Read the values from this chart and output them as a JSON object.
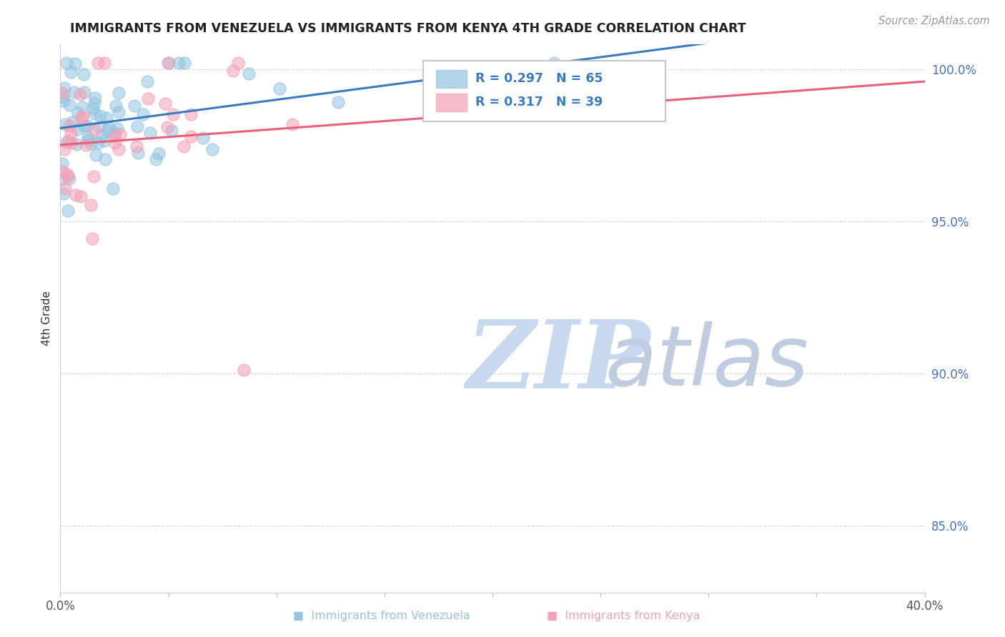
{
  "title": "IMMIGRANTS FROM VENEZUELA VS IMMIGRANTS FROM KENYA 4TH GRADE CORRELATION CHART",
  "source": "Source: ZipAtlas.com",
  "ylabel": "4th Grade",
  "xlim": [
    0.0,
    0.4
  ],
  "ylim": [
    0.828,
    1.008
  ],
  "xticks": [
    0.0,
    0.05,
    0.1,
    0.15,
    0.2,
    0.25,
    0.3,
    0.35,
    0.4
  ],
  "xticklabels": [
    "0.0%",
    "",
    "",
    "",
    "",
    "",
    "",
    "",
    "40.0%"
  ],
  "ytick_positions": [
    0.85,
    0.9,
    0.95,
    1.0
  ],
  "ytick_labels": [
    "85.0%",
    "90.0%",
    "95.0%",
    "100.0%"
  ],
  "R_venezuela": 0.297,
  "N_venezuela": 65,
  "R_kenya": 0.317,
  "N_kenya": 39,
  "color_venezuela": "#93c4e0",
  "color_kenya": "#f4a0b5",
  "line_color_venezuela": "#3a7bbf",
  "line_color_kenya": "#e8607a",
  "watermark_zip": "ZIP",
  "watermark_atlas": "atlas",
  "watermark_color_zip": "#c8d8ee",
  "watermark_color_atlas": "#c0cce0",
  "background_color": "#ffffff",
  "grid_color": "#cccccc",
  "ytick_color": "#4472c4",
  "xtick_color": "#555555",
  "legend_box_color": "#f0f0f0",
  "title_color": "#222222",
  "source_color": "#999999"
}
